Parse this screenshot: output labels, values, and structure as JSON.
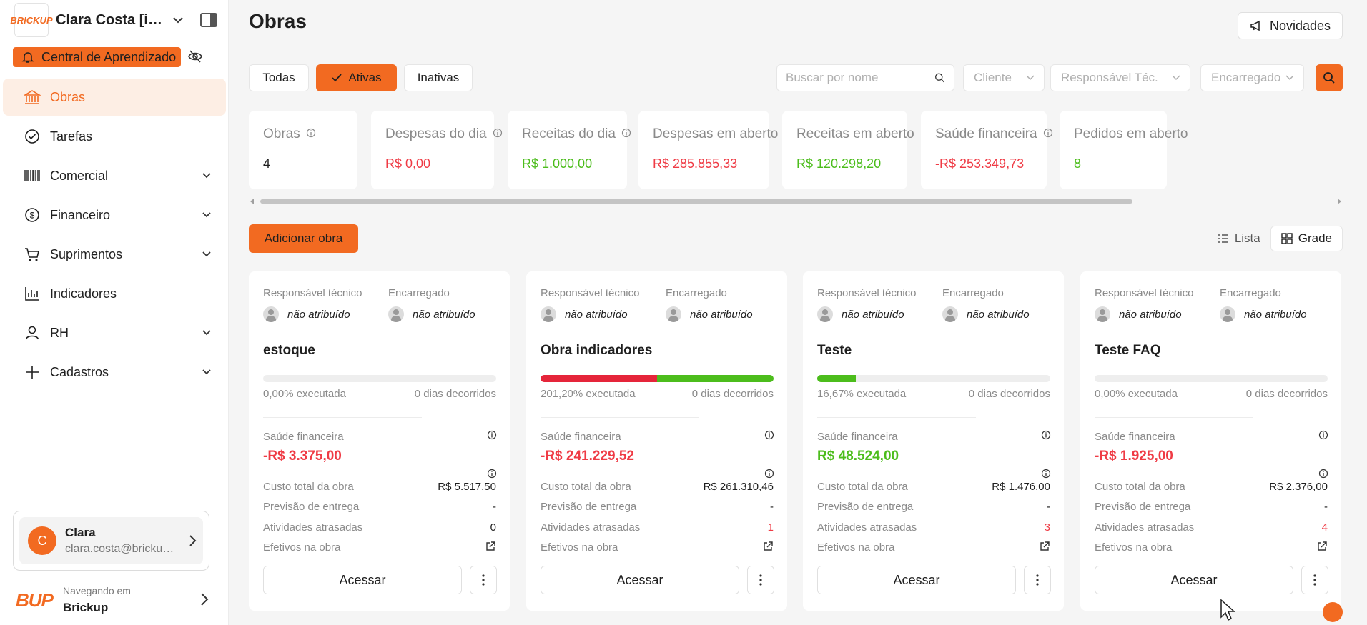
{
  "colors": {
    "accent": "#f26a21",
    "negative": "#ef3b45",
    "positive": "#4cbd1c",
    "text": "#1f1f1f",
    "muted": "#8a8a8a"
  },
  "sidebar": {
    "logo_text": "BRICKUP",
    "org_name": "Clara Costa [interno]",
    "learning_label": "Central de Aprendizado",
    "items": [
      {
        "label": "Obras",
        "icon": "bank-icon",
        "active": true,
        "expandable": false
      },
      {
        "label": "Tarefas",
        "icon": "check-circle-icon",
        "active": false,
        "expandable": false
      },
      {
        "label": "Comercial",
        "icon": "barcode-icon",
        "active": false,
        "expandable": true
      },
      {
        "label": "Financeiro",
        "icon": "dollar-circle-icon",
        "active": false,
        "expandable": true
      },
      {
        "label": "Suprimentos",
        "icon": "cart-icon",
        "active": false,
        "expandable": true
      },
      {
        "label": "Indicadores",
        "icon": "bar-chart-icon",
        "active": false,
        "expandable": false
      },
      {
        "label": "RH",
        "icon": "person-icon",
        "active": false,
        "expandable": true
      },
      {
        "label": "Cadastros",
        "icon": "plus-icon",
        "active": false,
        "expandable": true
      }
    ],
    "user": {
      "initial": "C",
      "name": "Clara",
      "email": "clara.costa@brickup.com.br"
    },
    "browsing": {
      "logo_text": "BUP",
      "label": "Navegando em",
      "name": "Brickup"
    }
  },
  "header": {
    "title": "Obras",
    "news_label": "Novidades"
  },
  "filters": {
    "tabs": [
      "Todas",
      "Ativas",
      "Inativas"
    ],
    "active_tab": "Ativas",
    "search_placeholder": "Buscar por nome",
    "selects": [
      "Cliente",
      "Responsável Téc.",
      "Encarregado"
    ]
  },
  "stats": [
    {
      "label": "Obras",
      "value": "4",
      "info": true,
      "tone": "neutral"
    },
    {
      "label": "Despesas do dia",
      "value": "R$ 0,00",
      "info": true,
      "tone": "negative"
    },
    {
      "label": "Receitas do dia",
      "value": "R$ 1.000,00",
      "info": true,
      "tone": "positive"
    },
    {
      "label": "Despesas em aberto",
      "value": "R$ 285.855,33",
      "info": false,
      "tone": "negative"
    },
    {
      "label": "Receitas em aberto",
      "value": "R$ 120.298,20",
      "info": false,
      "tone": "positive"
    },
    {
      "label": "Saúde financeira",
      "value": "-R$ 253.349,73",
      "info": true,
      "tone": "negative"
    },
    {
      "label": "Pedidos em aberto",
      "value": "8",
      "info": false,
      "tone": "positive"
    }
  ],
  "toolbar": {
    "add_label": "Adicionar obra",
    "view_list": "Lista",
    "view_grid": "Grade",
    "active_view": "Grade"
  },
  "card_labels": {
    "tech": "Responsável técnico",
    "foreman": "Encarregado",
    "health": "Saúde financeira",
    "cost": "Custo total da obra",
    "delivery": "Previsão de entrega",
    "late": "Atividades atrasadas",
    "staff": "Efetivos na obra",
    "access": "Acessar"
  },
  "obras": [
    {
      "tech": "não atribuído",
      "foreman": "não atribuído",
      "title": "estoque",
      "progress_text": "0,00% executada",
      "days_text": "0 dias decorridos",
      "progress_segments": [],
      "health": "-R$ 3.375,00",
      "health_tone": "negative",
      "cost": "R$ 5.517,50",
      "delivery": "-",
      "late": "0",
      "late_tone": "neutral"
    },
    {
      "tech": "não atribuído",
      "foreman": "não atribuído",
      "title": "Obra indicadores",
      "progress_text": "201,20% executada",
      "days_text": "0 dias decorridos",
      "progress_segments": [
        {
          "fraction": 0.5,
          "color": "#e5253a"
        },
        {
          "fraction": 0.5,
          "color": "#4cbd1c"
        }
      ],
      "health": "-R$ 241.229,52",
      "health_tone": "negative",
      "cost": "R$ 261.310,46",
      "delivery": "-",
      "late": "1",
      "late_tone": "negative"
    },
    {
      "tech": "não atribuído",
      "foreman": "não atribuído",
      "title": "Teste",
      "progress_text": "16,67% executada",
      "days_text": "0 dias decorridos",
      "progress_segments": [
        {
          "fraction": 0.1667,
          "color": "#4cbd1c"
        }
      ],
      "health": "R$ 48.524,00",
      "health_tone": "positive",
      "cost": "R$ 1.476,00",
      "delivery": "-",
      "late": "3",
      "late_tone": "negative"
    },
    {
      "tech": "não atribuído",
      "foreman": "não atribuído",
      "title": "Teste FAQ",
      "progress_text": "0,00% executada",
      "days_text": "0 dias decorridos",
      "progress_segments": [],
      "health": "-R$ 1.925,00",
      "health_tone": "negative",
      "cost": "R$ 2.376,00",
      "delivery": "-",
      "late": "4",
      "late_tone": "negative"
    }
  ]
}
